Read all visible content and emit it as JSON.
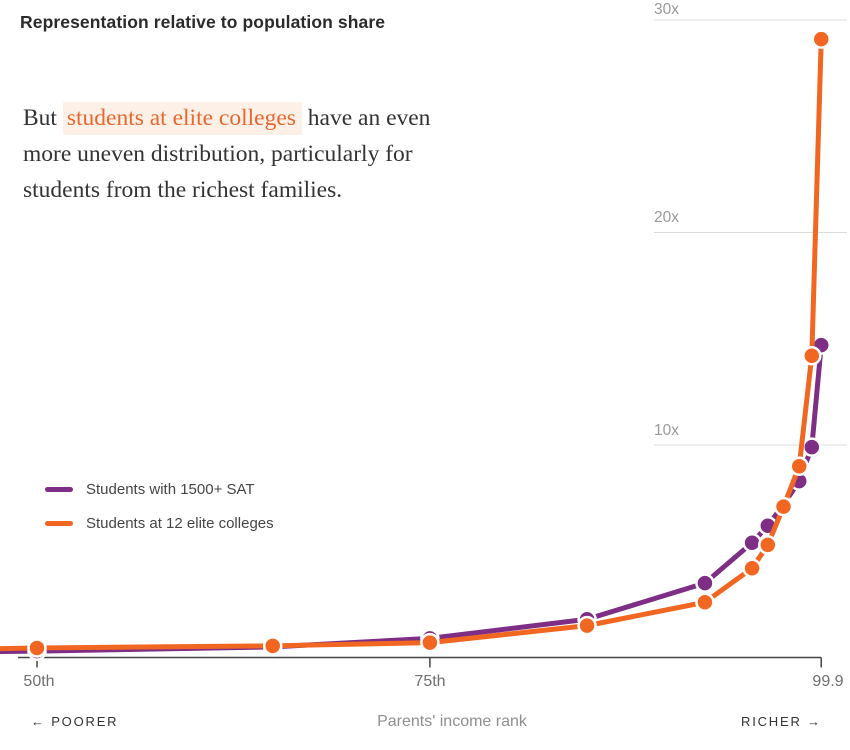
{
  "header": {
    "title": "Representation relative to population share"
  },
  "intro": {
    "line1_before": "But ",
    "line1_highlight": "students at elite colleges",
    "line1_after": " have an even",
    "line2": "more uneven distribution, particularly for",
    "line3": "students from the richest families."
  },
  "chart_data": {
    "type": "line",
    "title": "Representation relative to population share",
    "xlabel": "Parents' income rank",
    "x_axis": {
      "tick_labels": [
        "50th",
        "75th",
        "99.9"
      ],
      "tick_percentiles": [
        50,
        75,
        99.9
      ],
      "range_percentile": [
        47.65,
        99.95
      ],
      "direction_left": "← POORER",
      "direction_right": "RICHER →"
    },
    "y_axis": {
      "gridline_labels": [
        "30x",
        "20x",
        "10x"
      ],
      "gridline_values": [
        30,
        20,
        10
      ],
      "range": [
        0,
        31
      ],
      "grid": "horizontal, right side only"
    },
    "x_percentiles": [
      47.65,
      50,
      65,
      75,
      85,
      92.5,
      95.5,
      96.5,
      97.5,
      98.5,
      99.3,
      99.9
    ],
    "dot_from_index": 1,
    "series": [
      {
        "name": "Students with 1500+ SAT",
        "color": "#7e2f85",
        "values": [
          0.28,
          0.3,
          0.5,
          0.9,
          1.8,
          3.5,
          5.4,
          6.2,
          7.2,
          8.3,
          9.9,
          14.7
        ]
      },
      {
        "name": "Students at 12 elite colleges",
        "color": "#f16722",
        "values": [
          0.42,
          0.45,
          0.55,
          0.7,
          1.5,
          2.6,
          4.2,
          5.3,
          7.1,
          9.0,
          14.2,
          29.1
        ]
      }
    ],
    "legend_position": "middle-left",
    "colors": {
      "gridline": "#dcdcdc",
      "axis": "#444444",
      "highlight_text": "#e8672f",
      "highlight_bg": "#fdf1e7"
    }
  }
}
